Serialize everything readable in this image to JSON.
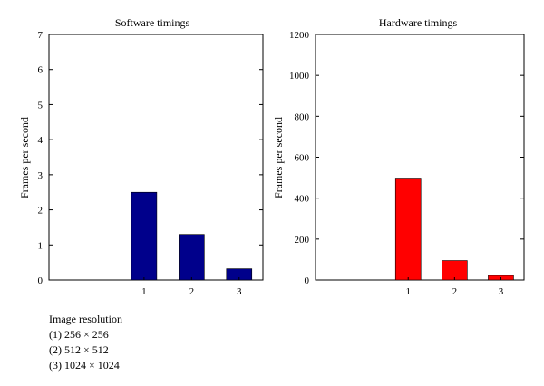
{
  "chart_data": [
    {
      "type": "bar",
      "title": "Software timings",
      "xlabel": "",
      "ylabel": "Frames per second",
      "categories": [
        "1",
        "2",
        "3"
      ],
      "values": [
        2.5,
        1.3,
        0.32
      ],
      "ylim": [
        0,
        7
      ],
      "yticks": [
        0,
        1,
        2,
        3,
        4,
        5,
        6,
        7
      ],
      "xlim": [
        -1,
        3.5
      ],
      "x": [
        1,
        2,
        3
      ],
      "color": "#00008b",
      "grid": false,
      "legend": "none"
    },
    {
      "type": "bar",
      "title": "Hardware timings",
      "xlabel": "",
      "ylabel": "Frames per second",
      "categories": [
        "1",
        "2",
        "3"
      ],
      "values": [
        498,
        95,
        22
      ],
      "ylim": [
        0,
        1200
      ],
      "yticks": [
        0,
        200,
        400,
        600,
        800,
        1000,
        1200
      ],
      "xlim": [
        -1,
        3.5
      ],
      "x": [
        1,
        2,
        3
      ],
      "color": "#ff0000",
      "grid": false,
      "legend": "none"
    }
  ],
  "notes": {
    "heading": "Image resolution",
    "items": [
      "(1) 256 × 256",
      "(2) 512 × 512",
      "(3) 1024 × 1024"
    ]
  }
}
